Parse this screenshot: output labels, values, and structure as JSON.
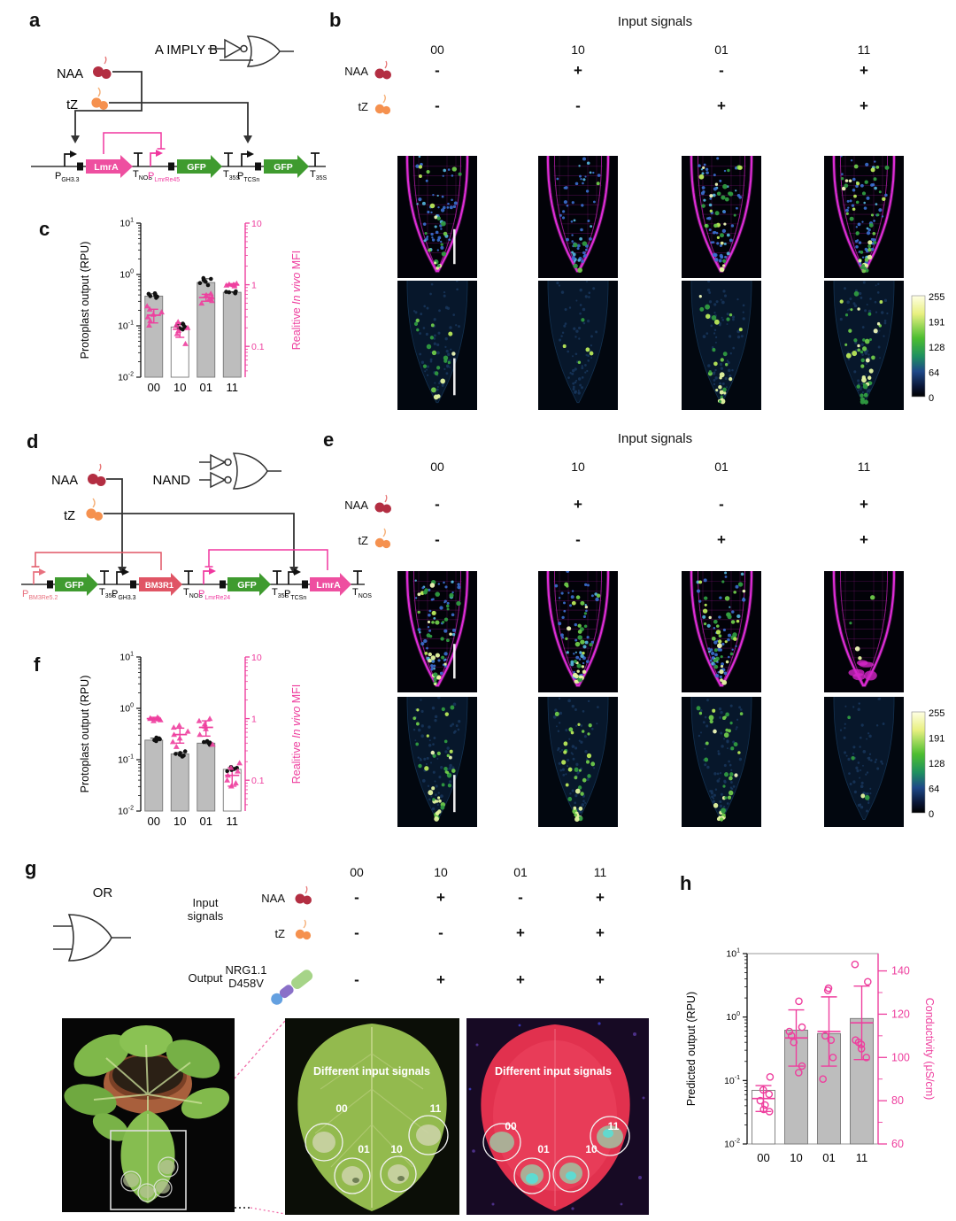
{
  "panel_a": {
    "label": "a",
    "gate": "A IMPLY B",
    "inputs": [
      {
        "name": "NAA",
        "color": "#b32e42"
      },
      {
        "name": "tZ",
        "color": "#f5914f"
      }
    ],
    "construct": [
      {
        "t": "P",
        "s": "GH3.3",
        "color": "#111111"
      },
      {
        "text": "LmrA",
        "color": "#ee4fa0"
      },
      {
        "t": "T",
        "s": "NOS",
        "color": "#111111"
      },
      {
        "t": "P",
        "s": "LmrRe45",
        "color": "#f0379f"
      },
      {
        "text": "GFP",
        "color": "#3f9b2f"
      },
      {
        "t": "T",
        "s": "35S",
        "color": "#111111"
      },
      {
        "t": "P",
        "s": "TCSn",
        "color": "#111111"
      },
      {
        "text": "GFP",
        "color": "#3f9b2f"
      },
      {
        "t": "T",
        "s": "35S",
        "color": "#111111"
      }
    ]
  },
  "panel_b": {
    "label": "b",
    "header": "Input signals",
    "columns": [
      "00",
      "10",
      "01",
      "11"
    ],
    "rows": [
      {
        "name": "NAA",
        "values": [
          "-",
          "+",
          "-",
          "+"
        ]
      },
      {
        "name": "tZ",
        "values": [
          "-",
          "-",
          "+",
          "+"
        ]
      }
    ]
  },
  "panel_d": {
    "label": "d",
    "gate": "NAND",
    "inputs": [
      {
        "name": "NAA",
        "color": "#b32e42"
      },
      {
        "name": "tZ",
        "color": "#f5914f"
      }
    ],
    "construct": [
      {
        "t": "P",
        "s": "BM3Re5.2",
        "color": "#e8707e"
      },
      {
        "text": "GFP",
        "color": "#3f9b2f"
      },
      {
        "t": "T",
        "s": "35S",
        "color": "#111111"
      },
      {
        "t": "P",
        "s": "GH3.3",
        "color": "#111111"
      },
      {
        "text": "BM3R1",
        "color": "#e05565"
      },
      {
        "t": "T",
        "s": "NOS",
        "color": "#111111"
      },
      {
        "t": "P",
        "s": "LmrRe24",
        "color": "#f0379f"
      },
      {
        "text": "GFP",
        "color": "#3f9b2f"
      },
      {
        "t": "T",
        "s": "35S",
        "color": "#111111"
      },
      {
        "t": "P",
        "s": "TCSn",
        "color": "#111111"
      },
      {
        "text": "LmrA",
        "color": "#ee4fa0"
      },
      {
        "t": "T",
        "s": "NOS",
        "color": "#111111"
      }
    ]
  },
  "panel_e": {
    "label": "e",
    "header": "Input signals",
    "columns": [
      "00",
      "10",
      "01",
      "11"
    ],
    "rows": [
      {
        "name": "NAA",
        "values": [
          "-",
          "+",
          "-",
          "+"
        ]
      },
      {
        "name": "tZ",
        "values": [
          "-",
          "-",
          "+",
          "+"
        ]
      }
    ]
  },
  "panel_g": {
    "label": "g",
    "gate": "OR",
    "input_line1": "Input",
    "input_line2": "signals",
    "output_label": "Output",
    "columns": [
      "00",
      "10",
      "01",
      "11"
    ],
    "rows": [
      {
        "name": "NAA",
        "values": [
          "-",
          "+",
          "-",
          "+"
        ]
      },
      {
        "name": "tZ",
        "values": [
          "-",
          "-",
          "+",
          "+"
        ]
      }
    ],
    "output_row": {
      "name_line1": "NRG1.1",
      "name_line2": "D458V",
      "values": [
        "-",
        "+",
        "+",
        "+"
      ]
    },
    "photos": {
      "caption": "Different input signals",
      "spot_labels": [
        "00",
        "01",
        "10",
        "11"
      ]
    }
  },
  "panel_c_label": "c",
  "panel_f_label": "f",
  "panel_h_label": "h",
  "colorbar": {
    "values": [
      "255",
      "191",
      "128",
      "64",
      "0"
    ]
  },
  "microscopy": {
    "b": {
      "levels": [
        0.38,
        0.06,
        0.58,
        0.9
      ],
      "wall_only": [
        false,
        false,
        false,
        false
      ],
      "scale_bar": true
    },
    "e": {
      "levels": [
        0.8,
        0.72,
        0.8,
        0.05
      ],
      "wall_only": [
        false,
        false,
        false,
        true
      ],
      "scale_bar": true
    }
  },
  "chart_data": [
    {
      "id": "c",
      "type": "bar",
      "categories": [
        "00",
        "10",
        "01",
        "11"
      ],
      "left_axis": {
        "label": "Protoplast output (RPU)",
        "scale": "log",
        "min": 0.01,
        "max": 10,
        "ticks": [
          10,
          1,
          0.1,
          0.01
        ]
      },
      "right_axis": {
        "label_parts": [
          {
            "t": "Realitive ",
            "i": false
          },
          {
            "t": "In vivo",
            "i": true
          },
          {
            "t": " MFI",
            "i": false
          }
        ],
        "scale": "log",
        "min": 0.0316,
        "max": 10,
        "ticks": [
          10,
          1,
          0.1
        ],
        "color": "#ee3f9e"
      },
      "bars": {
        "values": [
          0.38,
          0.095,
          0.7,
          0.45
        ],
        "fills": [
          "#bdbdbd",
          "#ffffff",
          "#bdbdbd",
          "#bdbdbd"
        ]
      },
      "black_dots": [
        [
          0.35,
          0.37,
          0.38,
          0.4,
          0.42,
          0.43
        ],
        [
          0.085,
          0.09,
          0.095,
          0.1,
          0.105,
          0.11
        ],
        [
          0.62,
          0.68,
          0.72,
          0.78,
          0.82,
          0.85
        ],
        [
          0.43,
          0.44,
          0.45,
          0.46,
          0.47
        ]
      ],
      "pink_triangles": [
        [
          0.22,
          0.26,
          0.3,
          0.33,
          0.36,
          0.4,
          0.45
        ],
        [
          0.11,
          0.16,
          0.18,
          0.2,
          0.22,
          0.25
        ],
        [
          0.5,
          0.55,
          0.6,
          0.63,
          0.68,
          0.72
        ],
        [
          0.95,
          0.98,
          1.0,
          1.0,
          1.02,
          1.05
        ]
      ],
      "pink_mean": [
        0.32,
        0.19,
        0.62,
        1.0
      ],
      "pink_sd": [
        0.08,
        0.05,
        0.08,
        0.04
      ]
    },
    {
      "id": "f",
      "type": "bar",
      "categories": [
        "00",
        "10",
        "01",
        "11"
      ],
      "left_axis": {
        "label": "Protoplast output (RPU)",
        "scale": "log",
        "min": 0.01,
        "max": 10,
        "ticks": [
          10,
          1,
          0.1,
          0.01
        ]
      },
      "right_axis": {
        "label_parts": [
          {
            "t": "Realitive ",
            "i": false
          },
          {
            "t": "In vivo",
            "i": true
          },
          {
            "t": " MFI",
            "i": false
          }
        ],
        "scale": "log",
        "min": 0.0316,
        "max": 10,
        "ticks": [
          10,
          1,
          0.1
        ],
        "color": "#ee3f9e"
      },
      "bars": {
        "values": [
          0.24,
          0.13,
          0.21,
          0.065
        ],
        "fills": [
          "#bdbdbd",
          "#bdbdbd",
          "#bdbdbd",
          "#ffffff"
        ]
      },
      "black_dots": [
        [
          0.23,
          0.24,
          0.245,
          0.25,
          0.26,
          0.27
        ],
        [
          0.115,
          0.12,
          0.125,
          0.13,
          0.135,
          0.145
        ],
        [
          0.195,
          0.2,
          0.21,
          0.215,
          0.22,
          0.23
        ],
        [
          0.06,
          0.063,
          0.066,
          0.069,
          0.072
        ]
      ],
      "pink_triangles": [
        [
          0.92,
          0.95,
          0.98,
          1.0,
          1.0,
          1.02,
          1.05
        ],
        [
          0.35,
          0.42,
          0.48,
          0.55,
          0.62,
          0.72,
          0.78
        ],
        [
          0.38,
          0.55,
          0.68,
          0.75,
          0.82,
          0.92,
          1.0
        ],
        [
          0.08,
          0.09,
          0.1,
          0.12,
          0.14,
          0.16,
          0.19
        ]
      ],
      "pink_mean": [
        1.0,
        0.55,
        0.72,
        0.12
      ],
      "pink_sd": [
        0.05,
        0.15,
        0.2,
        0.04
      ]
    },
    {
      "id": "h",
      "type": "bar",
      "categories": [
        "00",
        "10",
        "01",
        "11"
      ],
      "left_axis": {
        "label": "Predicted output (RPU)",
        "scale": "log",
        "min": 0.01,
        "max": 10,
        "ticks": [
          10,
          1,
          0.1,
          0.01
        ]
      },
      "right_axis": {
        "label_parts": [
          {
            "t": "Conductivity (μS/cm)",
            "i": false
          }
        ],
        "scale": "linear",
        "min": 60,
        "max": 148,
        "ticks": [
          140,
          120,
          100,
          80,
          60
        ],
        "color": "#ee3f9e"
      },
      "bars": {
        "values": [
          0.07,
          0.62,
          0.55,
          0.95
        ],
        "fills": [
          "#ffffff",
          "#bdbdbd",
          "#bdbdbd",
          "#bdbdbd"
        ]
      },
      "pink_circles": [
        [
          75,
          76,
          78,
          80,
          83,
          85,
          91
        ],
        [
          93,
          96,
          107,
          110,
          112,
          114,
          126
        ],
        [
          90,
          100,
          108,
          110,
          131,
          132
        ],
        [
          100,
          104,
          106,
          107,
          108,
          135,
          143
        ]
      ],
      "pink_mean": [
        81,
        109,
        112,
        116
      ],
      "pink_sd": [
        6,
        13,
        16,
        17
      ]
    }
  ]
}
